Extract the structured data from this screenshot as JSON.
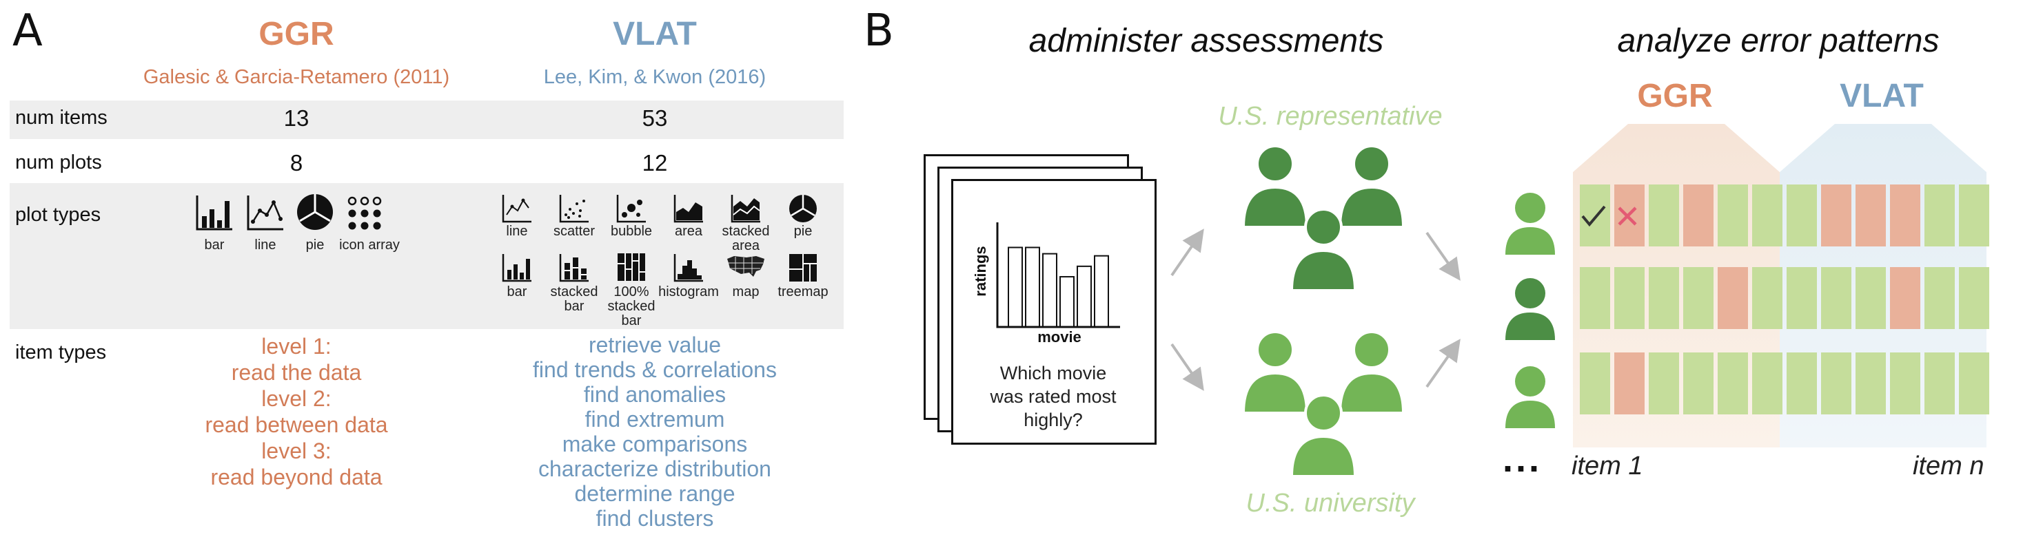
{
  "panel_a": {
    "letter": "A",
    "ggr": {
      "title": "GGR",
      "citation": "Galesic & Garcia-Retamero (2011)"
    },
    "vlat": {
      "title": "VLAT",
      "citation": "Lee, Kim, & Kwon (2016)"
    },
    "rows": {
      "num_items": {
        "label": "num items",
        "ggr": "13",
        "vlat": "53"
      },
      "num_plots": {
        "label": "num plots",
        "ggr": "8",
        "vlat": "12"
      },
      "plot_types": {
        "label": "plot types"
      },
      "item_types": {
        "label": "item types"
      }
    },
    "ggr_plot_types": [
      "bar",
      "line",
      "pie",
      "icon array"
    ],
    "vlat_plot_types": [
      "line",
      "scatter",
      "bubble",
      "area",
      "stacked area",
      "pie",
      "bar",
      "stacked bar",
      "100% stacked bar",
      "histogram",
      "map",
      "treemap"
    ],
    "ggr_item_types": [
      "level 1:",
      "read the data",
      "level 2:",
      "read between data",
      "level 3:",
      "read beyond data"
    ],
    "vlat_item_types": [
      "retrieve value",
      "find trends & correlations",
      "find  anomalies",
      "find extremum",
      "make comparisons",
      "characterize distribution",
      "determine range",
      "find clusters"
    ]
  },
  "panel_b": {
    "letter": "B",
    "administer_title": "administer assessments",
    "analyze_title": "analyze error patterns",
    "card": {
      "ylabel": "ratings",
      "xlabel": "movie",
      "question": "Which movie was rated most highly?",
      "bar_values": [
        7.6,
        7.6,
        7.0,
        4.8,
        5.8,
        6.8
      ]
    },
    "group_top": "U.S. representative",
    "group_bottom": "U.S. university",
    "ggr_label": "GGR",
    "vlat_label": "VLAT",
    "ellipsis": "...",
    "item_first": "item 1",
    "item_last": "item n",
    "colors": {
      "correct": "#c5dd9b",
      "error": "#e9b19a",
      "ggr": "#de8a62",
      "vlat": "#7aa0c1",
      "person_dark": "#4c8e45",
      "person_light": "#73b556"
    }
  }
}
